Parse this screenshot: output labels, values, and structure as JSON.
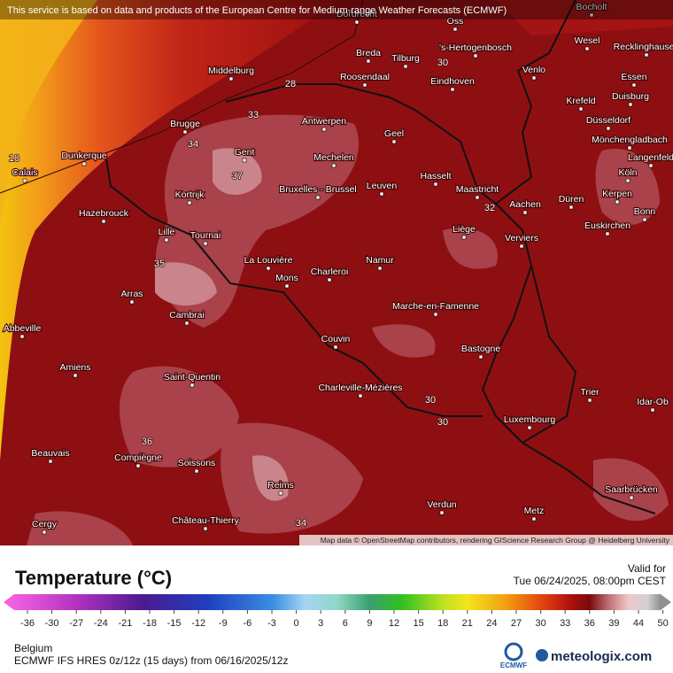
{
  "banner": "This service is based on data and products of the European Centre for Medium-range Weather Forecasts (ECMWF)",
  "map": {
    "cities": [
      "Dordrecht",
      "Oss",
      "'s-Hertogenbosch",
      "Bocholt",
      "Wesel",
      "Recklinghausen",
      "Breda",
      "Tilburg",
      "Middelburg",
      "Roosendaal",
      "Eindhoven",
      "Venlo",
      "Essen",
      "Duisburg",
      "Krefeld",
      "Düsseldorf",
      "Mönchengladbach",
      "Langenfeld",
      "Antwerpen",
      "Brugge",
      "Geel",
      "Gent",
      "Mechelen",
      "Dunkerque",
      "Calais",
      "Köln",
      "Bruxelles - Brussel",
      "Leuven",
      "Hasselt",
      "Maastricht",
      "Kortrijk",
      "Kerpen",
      "Aachen",
      "Düren",
      "Bonn",
      "Hazebrouck",
      "Euskirchen",
      "Liège",
      "Lille",
      "Tournai",
      "Verviers",
      "La Louvière",
      "Namur",
      "Mons",
      "Charleroi",
      "Arras",
      "Marche-en-Famenne",
      "Cambrai",
      "Abbeville",
      "Couvin",
      "Bastogne",
      "Amiens",
      "Saint-Quentin",
      "Charleville-Mézières",
      "Trier",
      "Idar-Ob",
      "Luxembourg",
      "Beauvais",
      "Compiègne",
      "Soissons",
      "Saarbrücken",
      "Reims",
      "Verdun",
      "Château-Thierry",
      "Metz",
      "Cergy"
    ],
    "contour_labels": [
      "18",
      "37",
      "35",
      "34",
      "33",
      "28",
      "30",
      "34",
      "36",
      "32",
      "30",
      "30"
    ],
    "attribution": "Map data © OpenStreetMap contributors, rendering GIScience Research Group @ Heidelberg University"
  },
  "legend": {
    "title": "Temperature (°C)",
    "ticks": [
      -36,
      -30,
      -27,
      -24,
      -21,
      -18,
      -15,
      -12,
      -9,
      -6,
      -3,
      0,
      3,
      6,
      9,
      12,
      15,
      18,
      21,
      24,
      27,
      30,
      33,
      36,
      39,
      44,
      50
    ]
  },
  "valid": {
    "label": "Valid for",
    "time": "Tue 06/24/2025, 08:00pm CEST"
  },
  "footer": {
    "region": "Belgium",
    "model": "ECMWF IFS HRES 0z/12z (15 days) from  06/16/2025/12z",
    "logos": [
      "ECMWF",
      "meteologix.com"
    ]
  }
}
